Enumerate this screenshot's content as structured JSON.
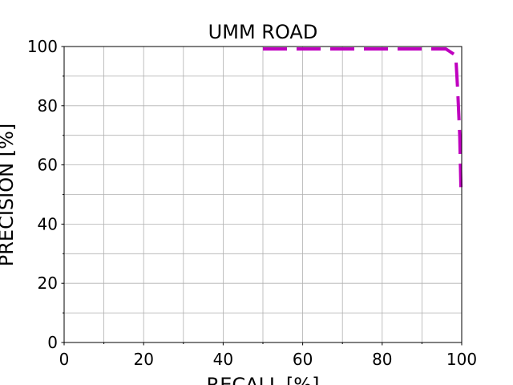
{
  "chart_data": {
    "type": "line",
    "title": "UMM ROAD",
    "xlabel": "RECALL [%]",
    "ylabel": "PRECISION [%]",
    "xlim": [
      0,
      100
    ],
    "ylim": [
      0,
      100
    ],
    "xticks": [
      "0",
      "20",
      "40",
      "60",
      "80",
      "100"
    ],
    "yticks": [
      "0",
      "20",
      "40",
      "60",
      "80",
      "100"
    ],
    "grid": true,
    "series": [
      {
        "color": "#bf00bf",
        "style": "dashed",
        "x": [
          50,
          96,
          98.5,
          99,
          99.5,
          99.8
        ],
        "y": [
          99.2,
          99.2,
          97,
          85,
          70,
          52.5
        ]
      }
    ]
  }
}
